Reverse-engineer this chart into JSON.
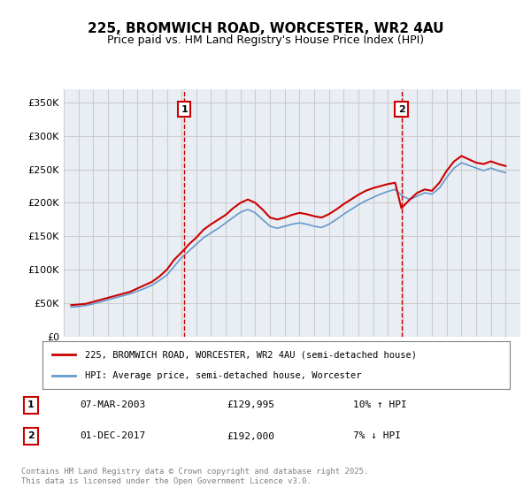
{
  "title": "225, BROMWICH ROAD, WORCESTER, WR2 4AU",
  "subtitle": "Price paid vs. HM Land Registry's House Price Index (HPI)",
  "ylabel_ticks": [
    "£0",
    "£50K",
    "£100K",
    "£150K",
    "£200K",
    "£250K",
    "£300K",
    "£350K"
  ],
  "ylabel_vals": [
    0,
    50000,
    100000,
    150000,
    200000,
    250000,
    300000,
    350000
  ],
  "ylim": [
    0,
    370000
  ],
  "xlim_start": 1995,
  "xlim_end": 2026,
  "red_line_color": "#cc0000",
  "blue_line_color": "#6699cc",
  "vline_color": "#cc0000",
  "grid_color": "#cccccc",
  "bg_color": "#e8eef4",
  "legend_label_red": "225, BROMWICH ROAD, WORCESTER, WR2 4AU (semi-detached house)",
  "legend_label_blue": "HPI: Average price, semi-detached house, Worcester",
  "transaction1_label": "1",
  "transaction1_date": "07-MAR-2003",
  "transaction1_price": "£129,995",
  "transaction1_hpi": "10% ↑ HPI",
  "transaction1_year": 2003.18,
  "transaction1_price_val": 129995,
  "transaction2_label": "2",
  "transaction2_date": "01-DEC-2017",
  "transaction2_price": "£192,000",
  "transaction2_hpi": "7% ↓ HPI",
  "transaction2_year": 2017.92,
  "transaction2_price_val": 192000,
  "footer": "Contains HM Land Registry data © Crown copyright and database right 2025.\nThis data is licensed under the Open Government Licence v3.0.",
  "red_x": [
    1995.5,
    1996.0,
    1996.5,
    1997.0,
    1997.5,
    1998.0,
    1998.5,
    1999.0,
    1999.5,
    2000.0,
    2000.5,
    2001.0,
    2001.5,
    2002.0,
    2002.5,
    2003.18,
    2003.5,
    2004.0,
    2004.5,
    2005.0,
    2005.5,
    2006.0,
    2006.5,
    2007.0,
    2007.5,
    2008.0,
    2008.5,
    2009.0,
    2009.5,
    2010.0,
    2010.5,
    2011.0,
    2011.5,
    2012.0,
    2012.5,
    2013.0,
    2013.5,
    2014.0,
    2014.5,
    2015.0,
    2015.5,
    2016.0,
    2016.5,
    2017.0,
    2017.5,
    2017.92,
    2018.5,
    2019.0,
    2019.5,
    2020.0,
    2020.5,
    2021.0,
    2021.5,
    2022.0,
    2022.5,
    2023.0,
    2023.5,
    2024.0,
    2024.5,
    2025.0
  ],
  "red_y": [
    47000,
    48000,
    49000,
    52000,
    55000,
    58000,
    61000,
    64000,
    67000,
    72000,
    77000,
    82000,
    90000,
    100000,
    115000,
    129995,
    138000,
    148000,
    160000,
    168000,
    175000,
    182000,
    192000,
    200000,
    205000,
    200000,
    190000,
    178000,
    175000,
    178000,
    182000,
    185000,
    183000,
    180000,
    178000,
    183000,
    190000,
    198000,
    205000,
    212000,
    218000,
    222000,
    225000,
    228000,
    230000,
    192000,
    205000,
    215000,
    220000,
    218000,
    230000,
    248000,
    262000,
    270000,
    265000,
    260000,
    258000,
    262000,
    258000,
    255000
  ],
  "blue_x": [
    1995.5,
    1996.0,
    1996.5,
    1997.0,
    1997.5,
    1998.0,
    1998.5,
    1999.0,
    1999.5,
    2000.0,
    2000.5,
    2001.0,
    2001.5,
    2002.0,
    2002.5,
    2003.0,
    2003.5,
    2004.0,
    2004.5,
    2005.0,
    2005.5,
    2006.0,
    2006.5,
    2007.0,
    2007.5,
    2008.0,
    2008.5,
    2009.0,
    2009.5,
    2010.0,
    2010.5,
    2011.0,
    2011.5,
    2012.0,
    2012.5,
    2013.0,
    2013.5,
    2014.0,
    2014.5,
    2015.0,
    2015.5,
    2016.0,
    2016.5,
    2017.0,
    2017.5,
    2018.0,
    2018.5,
    2019.0,
    2019.5,
    2020.0,
    2020.5,
    2021.0,
    2021.5,
    2022.0,
    2022.5,
    2023.0,
    2023.5,
    2024.0,
    2024.5,
    2025.0
  ],
  "blue_y": [
    44000,
    45000,
    46500,
    49000,
    52000,
    55000,
    58000,
    61000,
    64000,
    68000,
    72000,
    77000,
    84000,
    92000,
    105000,
    118000,
    128000,
    138000,
    148000,
    155000,
    162000,
    170000,
    178000,
    186000,
    190000,
    185000,
    175000,
    165000,
    162000,
    165000,
    168000,
    170000,
    168000,
    165000,
    163000,
    168000,
    175000,
    183000,
    190000,
    197000,
    203000,
    208000,
    213000,
    217000,
    220000,
    210000,
    205000,
    210000,
    215000,
    213000,
    222000,
    238000,
    252000,
    260000,
    256000,
    252000,
    248000,
    252000,
    248000,
    245000
  ]
}
